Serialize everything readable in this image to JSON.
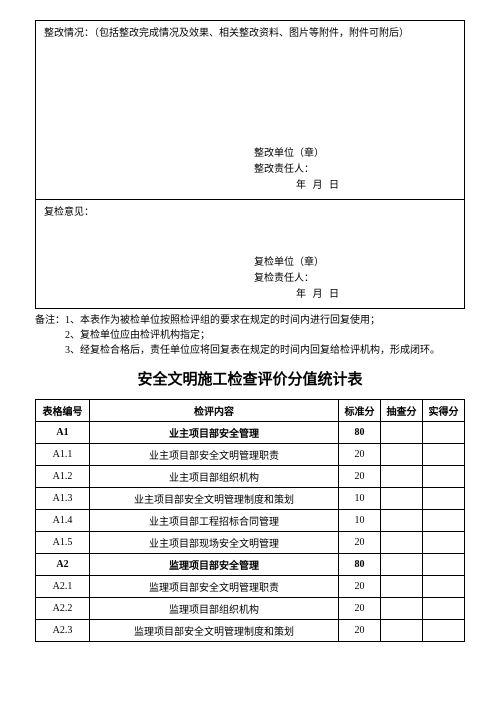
{
  "form": {
    "section1": {
      "header": "整改情况：（包括整改完成情况及效果、相关整改资料、图片等附件，附件可附后）",
      "sig_unit": "整改单位（章）",
      "sig_person": "整改责任人：",
      "date": "年    月    日"
    },
    "section2": {
      "header": "复检意见：",
      "sig_unit": "复检单位（章）",
      "sig_person": "复检责任人：",
      "date": "年    月    日"
    }
  },
  "notes": {
    "label": "备注：",
    "n1": "1、本表作为被检单位按照检评组的要求在规定的时间内进行回复使用；",
    "n2": "2、复检单位应由检评机构指定；",
    "n3": "3、经复检合格后，责任单位应将回复表在规定的时间内回复给检评机构，形成闭环。"
  },
  "title": "安全文明施工检查评价分值统计表",
  "table": {
    "headers": {
      "id": "表格编号",
      "name": "检评内容",
      "std": "标准分",
      "chk": "抽查分",
      "act": "实得分"
    },
    "rows": [
      {
        "id": "A1",
        "name": "业主项目部安全管理",
        "std": "80",
        "section": true
      },
      {
        "id": "A1.1",
        "name": "业主项目部安全文明管理职责",
        "std": "20"
      },
      {
        "id": "A1.2",
        "name": "业主项目部组织机构",
        "std": "20"
      },
      {
        "id": "A1.3",
        "name": "业主项目部安全文明管理制度和策划",
        "std": "10"
      },
      {
        "id": "A1.4",
        "name": "业主项目部工程招标合同管理",
        "std": "10"
      },
      {
        "id": "A1.5",
        "name": "业主项目部现场安全文明管理",
        "std": "20"
      },
      {
        "id": "A2",
        "name": "监理项目部安全管理",
        "std": "80",
        "section": true
      },
      {
        "id": "A2.1",
        "name": "监理项目部安全文明管理职责",
        "std": "20"
      },
      {
        "id": "A2.2",
        "name": "监理项目部组织机构",
        "std": "20"
      },
      {
        "id": "A2.3",
        "name": "监理项目部安全文明管理制度和策划",
        "std": "20"
      }
    ]
  }
}
